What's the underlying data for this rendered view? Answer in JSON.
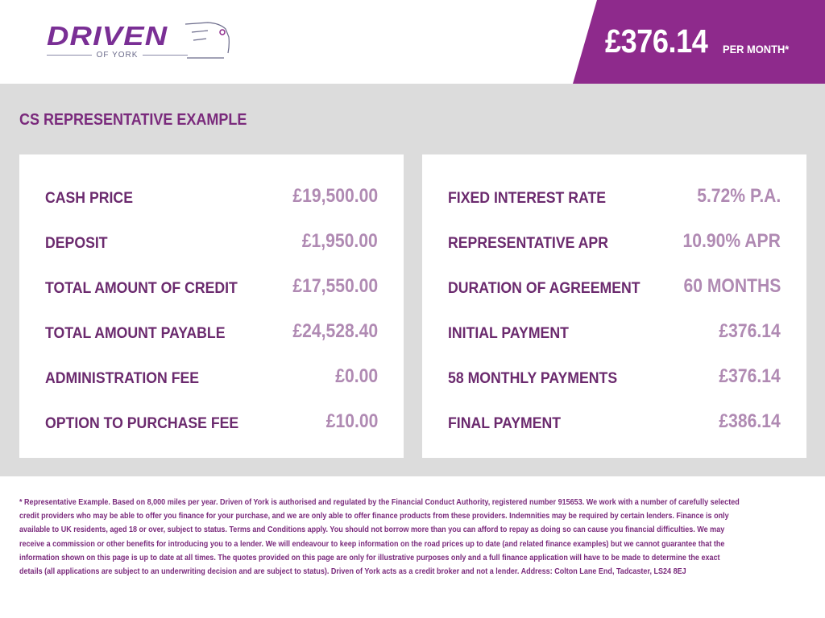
{
  "brand": {
    "name": "DRIVEN",
    "sub": "OF YORK"
  },
  "badge": {
    "price": "£376.14",
    "per": "PER MONTH*"
  },
  "colors": {
    "accent": "#8e2a8c",
    "label": "#6b2a6e",
    "value": "#b08ab3",
    "band": "#dcdcdc"
  },
  "section_title": "CS REPRESENTATIVE EXAMPLE",
  "left": [
    {
      "label": "CASH PRICE",
      "value": "£19,500.00"
    },
    {
      "label": "DEPOSIT",
      "value": "£1,950.00"
    },
    {
      "label": "TOTAL AMOUNT OF CREDIT",
      "value": "£17,550.00"
    },
    {
      "label": "TOTAL AMOUNT PAYABLE",
      "value": "£24,528.40"
    },
    {
      "label": "ADMINISTRATION FEE",
      "value": "£0.00"
    },
    {
      "label": "OPTION TO PURCHASE FEE",
      "value": "£10.00"
    }
  ],
  "right": [
    {
      "label": "FIXED INTEREST RATE",
      "value": "5.72% P.A."
    },
    {
      "label": "REPRESENTATIVE APR",
      "value": "10.90% APR"
    },
    {
      "label": "DURATION OF AGREEMENT",
      "value": "60 MONTHS"
    },
    {
      "label": "INITIAL PAYMENT",
      "value": "£376.14"
    },
    {
      "label": "58 MONTHLY PAYMENTS",
      "value": "£376.14"
    },
    {
      "label": "FINAL PAYMENT",
      "value": "£386.14"
    }
  ],
  "footer": [
    "* Representative Example. Based on 8,000 miles per year. Driven of York is authorised and regulated by the Financial Conduct Authority, registered number 915653. We work with a number of carefully selected",
    "credit providers who may be able to offer you finance for your purchase, and we are only able to offer finance products from these providers. Indemnities may be required by certain lenders. Finance is only",
    "available to UK residents, aged 18 or over, subject to status. Terms and Conditions apply. You should not borrow more than you can afford to repay as doing so can cause you financial difficulties. We may",
    "receive a commission or other benefits for introducing you to a lender. We will endeavour to keep information on the road prices up to date (and related finance examples) but we cannot guarantee that the",
    "information shown on this page is up to date at all times. The quotes provided on this page are only for illustrative purposes only and a full finance application will have to be made to determine the exact",
    "details (all applications are subject to an underwriting decision and are subject to status). Driven of York acts as a credit broker and not a lender. Address: Colton Lane End, Tadcaster, LS24 8EJ"
  ]
}
